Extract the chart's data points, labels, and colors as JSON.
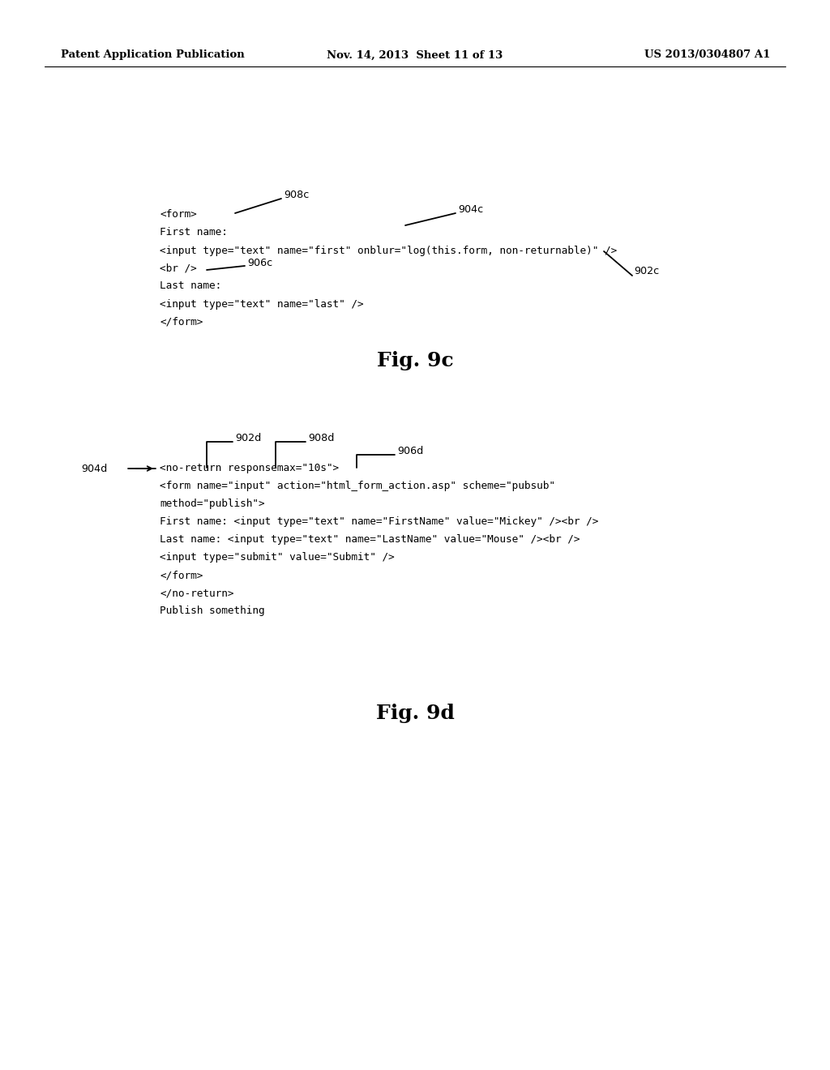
{
  "bg_color": "#ffffff",
  "header_left": "Patent Application Publication",
  "header_center": "Nov. 14, 2013  Sheet 11 of 13",
  "header_right": "US 2013/0304807 A1",
  "fig9c_label": "Fig. 9c",
  "fig9d_label": "Fig. 9d",
  "fig9c_code_lines": [
    "<form>",
    "First name:",
    "<input type=\"text\" name=\"first\" onblur=\"log(this.form, non-returnable)\" />",
    "<br />",
    "Last name:",
    "<input type=\"text\" name=\"last\" />",
    "</form>"
  ],
  "fig9d_code_lines": [
    "<no-return responsemax=\"10s\">",
    "<form name=\"input\" action=\"html_form_action.asp\" scheme=\"pubsub\"",
    "method=\"publish\">",
    "First name: <input type=\"text\" name=\"FirstName\" value=\"Mickey\" /><br />",
    "Last name: <input type=\"text\" name=\"LastName\" value=\"Mouse\" /><br />",
    "<input type=\"submit\" value=\"Submit\" />",
    "</form>",
    "</no-return>",
    "Publish something"
  ]
}
